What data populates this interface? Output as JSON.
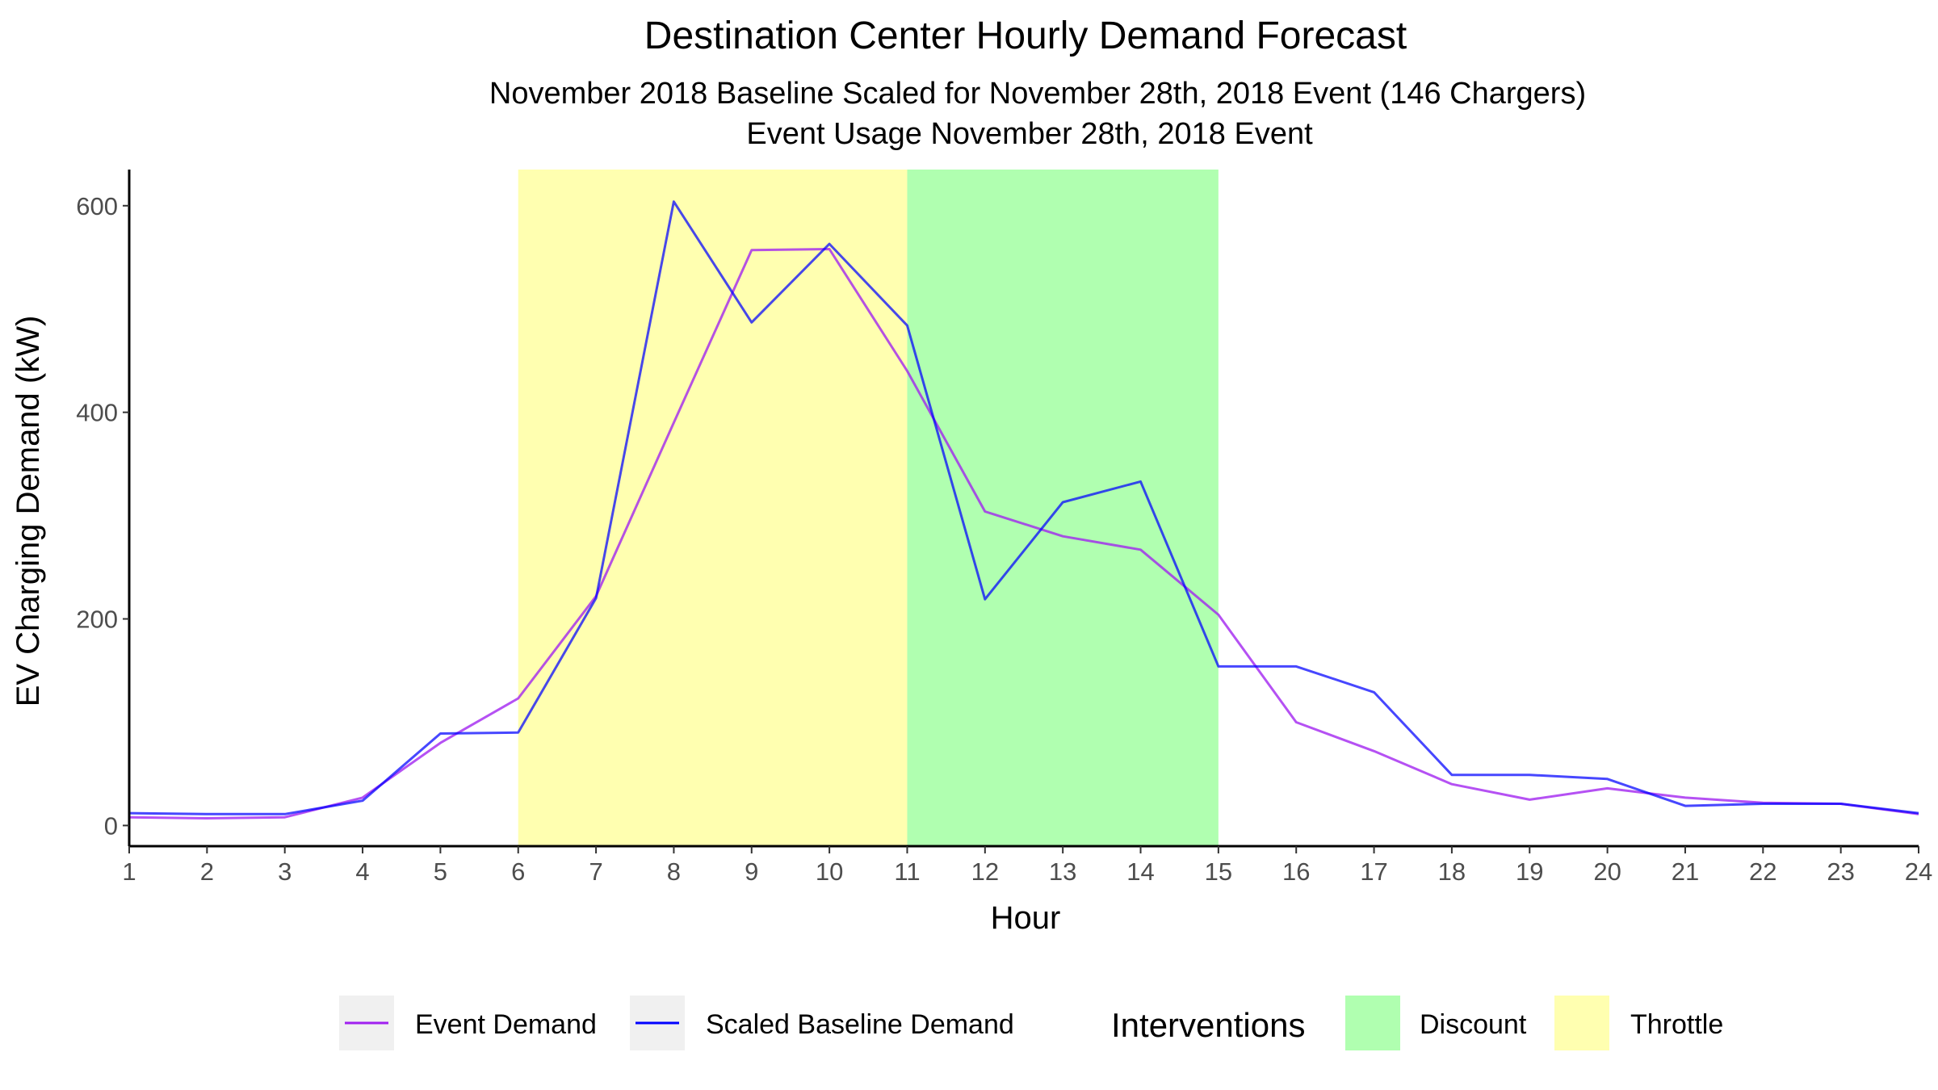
{
  "chart_data": {
    "type": "line",
    "title": "Destination Center Hourly Demand Forecast",
    "subtitle_lines": [
      "November 2018 Baseline Scaled for November 28th, 2018 Event (146 Chargers)",
      "Event Usage November 28th, 2018 Event"
    ],
    "xlabel": "Hour",
    "ylabel": "EV Charging Demand (kW)",
    "x": [
      1,
      2,
      3,
      4,
      5,
      6,
      7,
      8,
      9,
      10,
      11,
      12,
      13,
      14,
      15,
      16,
      17,
      18,
      19,
      20,
      21,
      22,
      23,
      24
    ],
    "x_tick_labels": [
      "1",
      "2",
      "3",
      "4",
      "5",
      "6",
      "7",
      "8",
      "9",
      "10",
      "11",
      "12",
      "13",
      "14",
      "15",
      "16",
      "17",
      "18",
      "19",
      "20",
      "21",
      "22",
      "23",
      "24"
    ],
    "xlim": [
      1,
      24
    ],
    "ylim": [
      -20,
      635
    ],
    "y_ticks": [
      0,
      200,
      400,
      600
    ],
    "y_tick_labels": [
      "0",
      "200",
      "400",
      "600"
    ],
    "grid": false,
    "series": [
      {
        "name": "Event Demand",
        "color": "#a020f0",
        "values": [
          8,
          7,
          8,
          27,
          80,
          123,
          222,
          390,
          557,
          558,
          440,
          304,
          280,
          267,
          204,
          100,
          72,
          40,
          25,
          36,
          27,
          22,
          21,
          11
        ]
      },
      {
        "name": "Scaled Baseline Demand",
        "color": "#0000ff",
        "values": [
          12,
          11,
          11,
          24,
          89,
          90,
          220,
          604,
          487,
          563,
          484,
          219,
          313,
          333,
          154,
          154,
          129,
          49,
          49,
          45,
          19,
          21,
          21,
          12
        ]
      }
    ],
    "bands": [
      {
        "name": "Throttle",
        "from": 6,
        "to": 11,
        "color": "#ffffb0"
      },
      {
        "name": "Discount",
        "from": 11,
        "to": 15,
        "color": "#b0ffb0"
      }
    ],
    "legend": {
      "position": "bottom",
      "intervention_title": "Interventions",
      "line_items": [
        "Event Demand",
        "Scaled Baseline Demand"
      ],
      "band_items": [
        "Discount",
        "Throttle"
      ]
    }
  }
}
